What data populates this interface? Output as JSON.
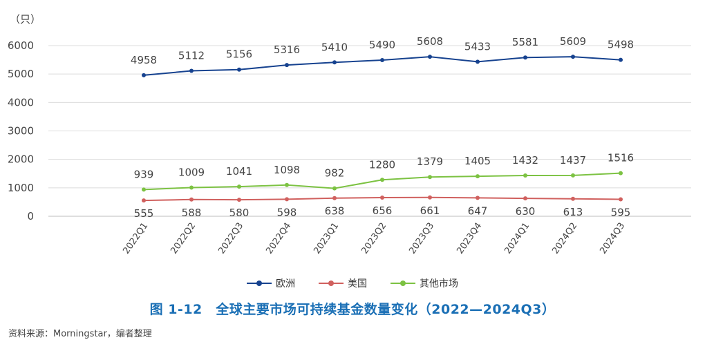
{
  "unit_label": "（只）",
  "caption": "图 1-12　全球主要市场可持续基金数量变化（2022—2024Q3）",
  "source": "资料来源：Morningstar，编者整理",
  "chart_data": {
    "type": "line",
    "title": "",
    "xlabel": "",
    "ylabel": "（只）",
    "ylim": [
      0,
      6000
    ],
    "yticks": [
      0,
      1000,
      2000,
      3000,
      4000,
      5000,
      6000
    ],
    "grid": true,
    "legend_position": "bottom",
    "categories": [
      "2022Q1",
      "2022Q2",
      "2022Q3",
      "2022Q4",
      "2023Q1",
      "2023Q2",
      "2023Q3",
      "2023Q4",
      "2024Q1",
      "2024Q2",
      "2024Q3"
    ],
    "series": [
      {
        "name": "欧洲",
        "color": "#16428f",
        "label_pos": "above",
        "values": [
          4958,
          5112,
          5156,
          5316,
          5410,
          5490,
          5608,
          5433,
          5581,
          5609,
          5498
        ]
      },
      {
        "name": "美国",
        "color": "#d0605e",
        "label_pos": "below",
        "values": [
          555,
          588,
          580,
          598,
          638,
          656,
          661,
          647,
          630,
          613,
          595
        ]
      },
      {
        "name": "其他市场",
        "color": "#7cc242",
        "label_pos": "above",
        "values": [
          939,
          1009,
          1041,
          1098,
          982,
          1280,
          1379,
          1405,
          1432,
          1437,
          1516
        ]
      }
    ]
  }
}
